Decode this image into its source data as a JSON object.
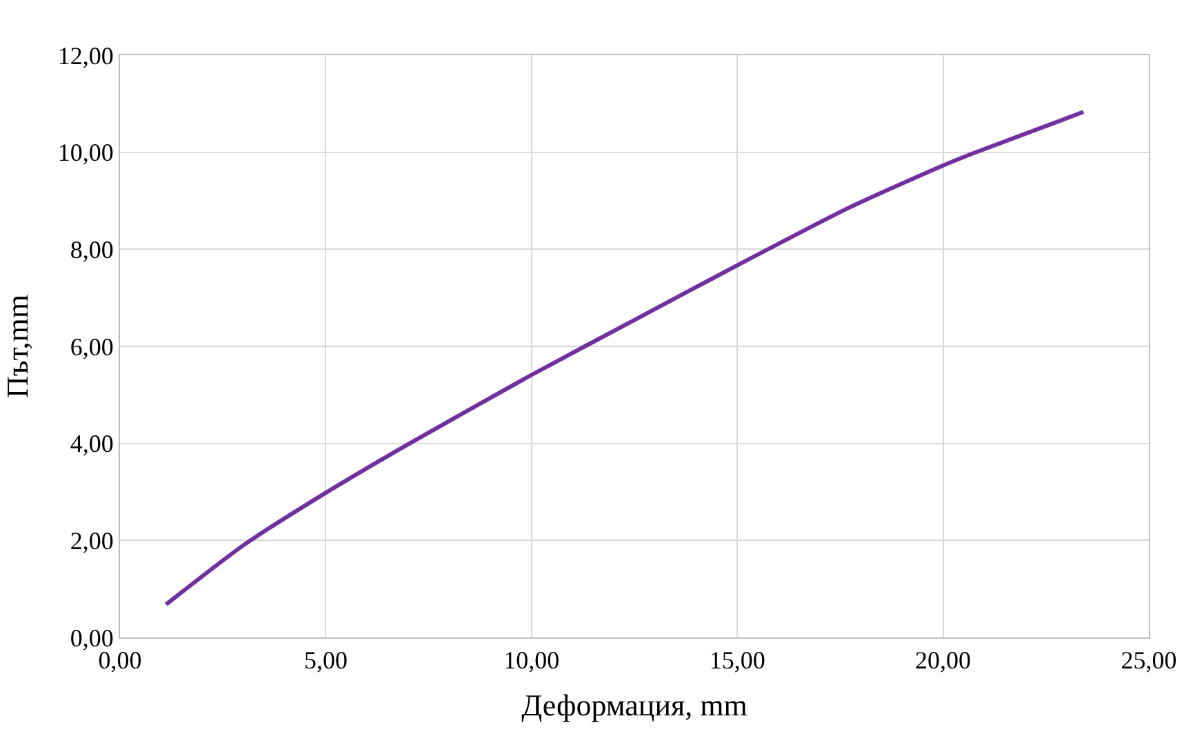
{
  "chart_data": {
    "type": "line",
    "xlabel": "Деформация, mm",
    "ylabel": "Път,mm",
    "x": [
      1.12,
      3.0,
      5.0,
      7.02,
      10.0,
      12.54,
      15.0,
      17.72,
      19.93,
      20.74,
      23.41
    ],
    "series": [
      {
        "color": "#7030a0",
        "values": [
          0.68,
          1.9,
          2.98,
          3.99,
          5.41,
          6.56,
          7.67,
          8.86,
          9.7,
          9.98,
          10.83
        ]
      }
    ],
    "xlim": [
      0,
      25
    ],
    "xticks": [
      {
        "value": 0,
        "label": "0,00"
      },
      {
        "value": 5,
        "label": "5,00"
      },
      {
        "value": 10,
        "label": "10,00"
      },
      {
        "value": 15,
        "label": "15,00"
      },
      {
        "value": 20,
        "label": "20,00"
      },
      {
        "value": 25,
        "label": "25,00"
      }
    ],
    "ylim": [
      0,
      12
    ],
    "yticks": [
      {
        "value": 0,
        "label": "0,00"
      },
      {
        "value": 2,
        "label": "2,00"
      },
      {
        "value": 4,
        "label": "4,00"
      },
      {
        "value": 6,
        "label": "6,00"
      },
      {
        "value": 8,
        "label": "8,00"
      },
      {
        "value": 10,
        "label": "10,00"
      },
      {
        "value": 12,
        "label": "12,00"
      }
    ],
    "grid": true,
    "marker": "none",
    "line_style": "solid",
    "legend": false
  }
}
